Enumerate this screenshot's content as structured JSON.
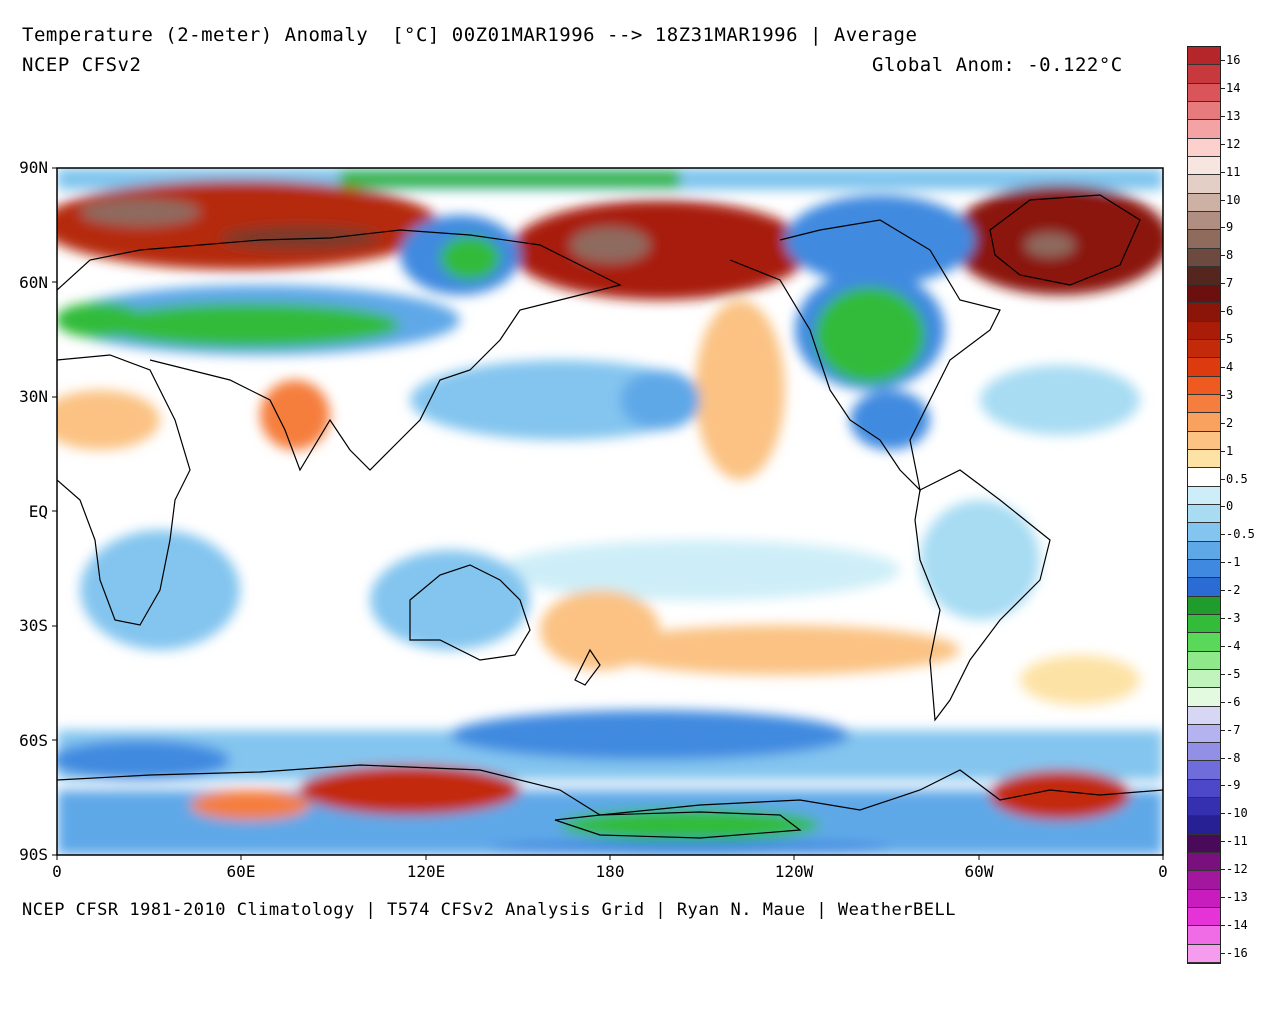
{
  "header": {
    "title": "Temperature (2-meter) Anomaly  [°C] 00Z01MAR1996 --> 18Z31MAR1996 | Average",
    "model": "NCEP CFSv2",
    "global_anom": "Global Anom: -0.122°C"
  },
  "footer": {
    "credit": "NCEP CFSR 1981-2010 Climatology | T574 CFSv2 Analysis Grid | Ryan N. Maue | WeatherBELL"
  },
  "axes": {
    "lat_labels": [
      "90N",
      "60N",
      "30N",
      "EQ",
      "30S",
      "60S",
      "90S"
    ],
    "lon_labels": [
      "0",
      "60E",
      "120E",
      "180",
      "120W",
      "60W",
      "0"
    ]
  },
  "colorbar": {
    "labels": [
      "16",
      "14",
      "13",
      "12",
      "11",
      "10",
      "9",
      "8",
      "7",
      "6",
      "5",
      "4",
      "3",
      "2",
      "1",
      "0.5",
      "0",
      "-0.5",
      "-1",
      "-2",
      "-3",
      "-4",
      "-5",
      "-6",
      "-7",
      "-8",
      "-9",
      "-10",
      "-11",
      "-12",
      "-13",
      "-14",
      "-16"
    ],
    "colors": [
      "#b5262b",
      "#c8393e",
      "#d9555a",
      "#e77a7c",
      "#f3a3a4",
      "#fbd0cd",
      "#f6e6df",
      "#e3cfc6",
      "#cdb1a5",
      "#b08f82",
      "#8f6b5e",
      "#6d4a3f",
      "#55261e",
      "#6b0f0f",
      "#8b1508",
      "#a81c08",
      "#c32a0a",
      "#dc3b10",
      "#ee5a1f",
      "#f57e3e",
      "#f9a25f",
      "#fbc283",
      "#fde2a5",
      "#ffffff",
      "#cdeef8",
      "#a7dcf3",
      "#83c5ef",
      "#5fa8e8",
      "#3f8ae0",
      "#2b6cd4",
      "#1f9c2b",
      "#33bb3a",
      "#5ad85a",
      "#8fe88a",
      "#c0f4bc",
      "#e4fae0",
      "#d7d6f5",
      "#b5b3ef",
      "#9290e6",
      "#6f6cdc",
      "#4d48c9",
      "#3530b0",
      "#271f94",
      "#4a0a5a",
      "#7a0f7e",
      "#a3169e",
      "#c81cbe",
      "#e633d8",
      "#f06be6",
      "#f59cef"
    ]
  }
}
